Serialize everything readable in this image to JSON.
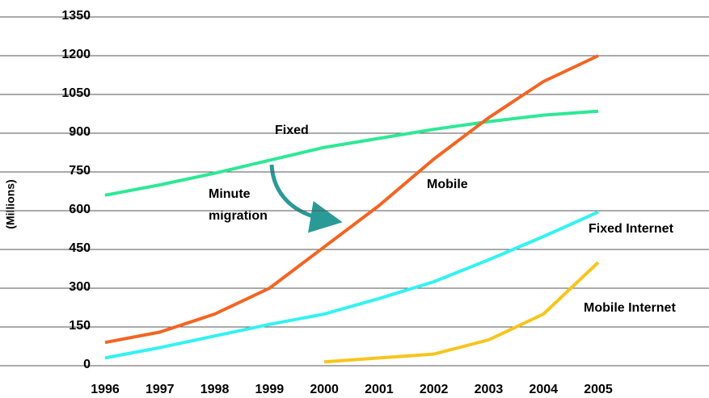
{
  "chart_data": {
    "type": "line",
    "y_label": "(Millions)",
    "annotation": [
      "Minute",
      "migration"
    ],
    "categories": [
      "1996",
      "1997",
      "1998",
      "1999",
      "2000",
      "2001",
      "2002",
      "2003",
      "2004",
      "2005"
    ],
    "series": [
      {
        "name": "Fixed",
        "color": "#2ee896",
        "values": [
          660,
          700,
          745,
          795,
          845,
          880,
          915,
          945,
          970,
          985
        ]
      },
      {
        "name": "Mobile",
        "color": "#f26522",
        "values": [
          90,
          130,
          200,
          300,
          460,
          620,
          800,
          960,
          1100,
          1200
        ]
      },
      {
        "name": "Fixed Internet",
        "color": "#33f2f2",
        "values": [
          30,
          70,
          115,
          160,
          200,
          260,
          325,
          410,
          500,
          595
        ]
      },
      {
        "name": "Mobile Internet",
        "color": "#f7c51c",
        "values": [
          null,
          null,
          null,
          null,
          15,
          30,
          45,
          100,
          200,
          400
        ]
      }
    ],
    "ylim": [
      0,
      1350
    ],
    "yticks": [
      0,
      150,
      300,
      450,
      600,
      750,
      900,
      1050,
      1200,
      1350
    ],
    "grid": true
  }
}
